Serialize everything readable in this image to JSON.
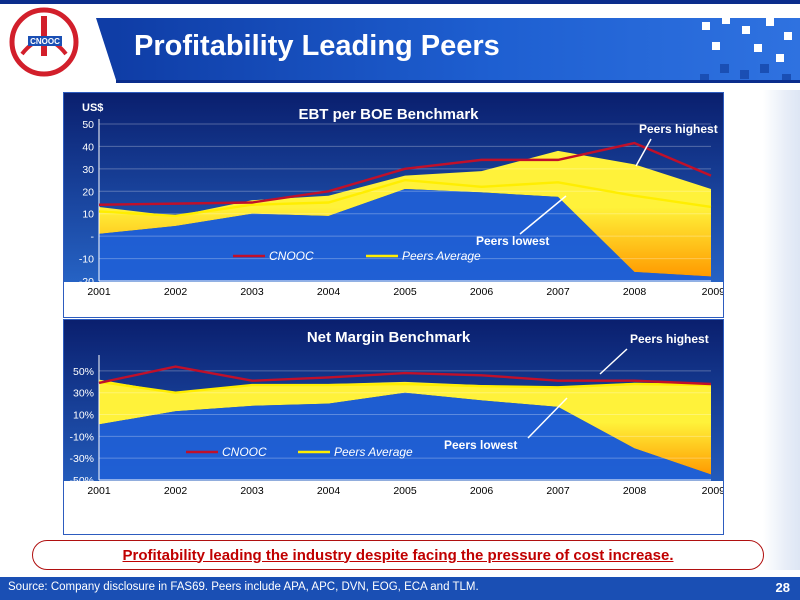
{
  "slide": {
    "title": "Profitability Leading Peers",
    "callout": "Profitability leading the industry despite facing the pressure of cost increase.",
    "source": "Source:  Company disclosure in FAS69. Peers include APA, APC, DVN, EOG, ECA and TLM.",
    "page_number": "28",
    "logo_text": "CNOOC"
  },
  "colors": {
    "bg_top": "#0a1f6e",
    "bg_bottom": "#2b6fd4",
    "cnooc": "#c0102a",
    "peers_avg": "#ffee00",
    "band": "#fff23a",
    "band_deep": "#ff9a00",
    "lower": "#1f60d6",
    "title_bar": "#1a4fb4",
    "callout_text": "#c00000"
  },
  "chart_data": [
    {
      "type": "area",
      "title": "EBT per BOE Benchmark",
      "ylabel": "US$",
      "x": [
        "2001",
        "2002",
        "2003",
        "2004",
        "2005",
        "2006",
        "2007",
        "2008",
        "2009"
      ],
      "ylim": [
        -20,
        50
      ],
      "yticks": [
        -20,
        -10,
        0,
        10,
        20,
        30,
        40,
        50
      ],
      "ytick_labels": [
        "-20",
        "-10",
        "-",
        "10",
        "20",
        "30",
        "40",
        "50"
      ],
      "grid": true,
      "series": [
        {
          "name": "CNOOC",
          "values": [
            14,
            14.5,
            15,
            20,
            30,
            34,
            34,
            41.5,
            27
          ]
        },
        {
          "name": "Peers Average",
          "values": [
            11,
            9,
            14,
            15,
            25,
            22,
            24,
            18,
            13
          ]
        },
        {
          "key": "Peers highest",
          "values": [
            13,
            9,
            16,
            18,
            27,
            29,
            38,
            32,
            21
          ]
        },
        {
          "key": "Peers lowest",
          "values": [
            1,
            4.5,
            10,
            9,
            21,
            19.5,
            17.5,
            -16,
            -18
          ]
        }
      ],
      "annotations": [
        "Peers highest",
        "Peers lowest"
      ],
      "legend_position": "bottom-center"
    },
    {
      "type": "area",
      "title": "Net Margin Benchmark",
      "x": [
        "2001",
        "2002",
        "2003",
        "2004",
        "2005",
        "2006",
        "2007",
        "2008",
        "2009"
      ],
      "ylim": [
        -50,
        60
      ],
      "yticks": [
        -50,
        -30,
        -10,
        10,
        30,
        50
      ],
      "ytick_labels": [
        "-50%",
        "-30%",
        "-10%",
        "10%",
        "30%",
        "50%"
      ],
      "grid": true,
      "series": [
        {
          "name": "CNOOC",
          "values": [
            39,
            54,
            41,
            44,
            48,
            46,
            41,
            41,
            38
          ]
        },
        {
          "name": "Peers Average",
          "values": [
            40,
            30,
            37,
            37,
            38,
            36,
            35,
            38,
            37
          ]
        },
        {
          "key": "Peers highest",
          "values": [
            42,
            30,
            37,
            38,
            40,
            37,
            35,
            39,
            38
          ]
        },
        {
          "key": "Peers lowest",
          "values": [
            1,
            13,
            18,
            20,
            30,
            23,
            17,
            -21,
            -45
          ]
        }
      ],
      "annotations": [
        "Peers highest",
        "Peers lowest"
      ],
      "legend_position": "bottom-center"
    }
  ]
}
